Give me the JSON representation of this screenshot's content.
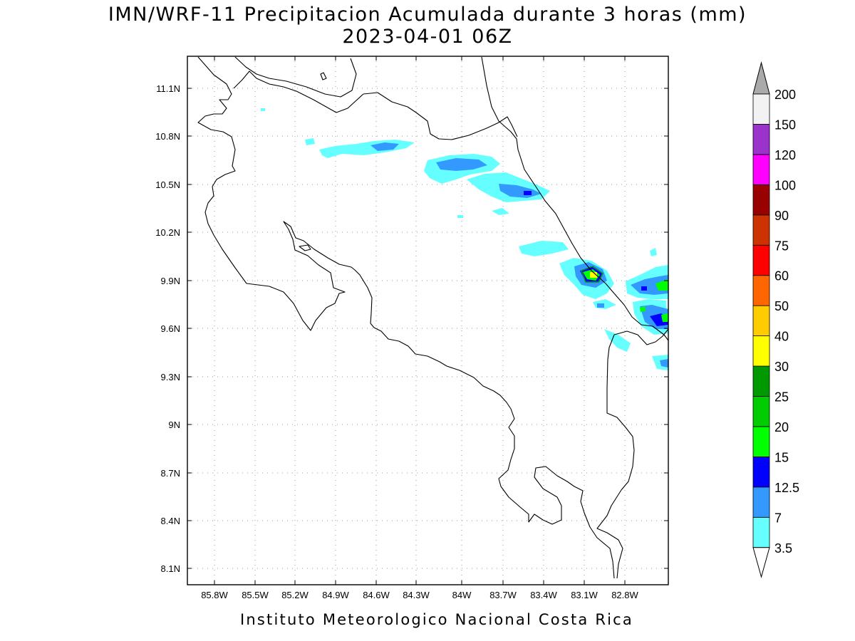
{
  "title": "IMN/WRF-11 Precipitacion Acumulada durante 3 horas (mm)",
  "subtitle": "2023-04-01 06Z",
  "footer": "Instituto Meteorologico Nacional Costa Rica",
  "map": {
    "variable": "accumulated precipitation 3h",
    "units": "mm",
    "lon_range": [
      -86.16,
      -82.53
    ],
    "lat_range": [
      8.0,
      11.28
    ],
    "lon_ticks": [
      "85.8W",
      "85.5W",
      "85.2W",
      "84.9W",
      "84.6W",
      "84.3W",
      "84W",
      "83.7W",
      "83.4W",
      "83.1W",
      "82.8W"
    ],
    "lat_ticks": [
      "11.1N",
      "10.8N",
      "10.5N",
      "10.2N",
      "9.9N",
      "9.6N",
      "9.3N",
      "9N",
      "8.7N",
      "8.4N",
      "8.1N"
    ],
    "grid": true
  },
  "colorbar": {
    "labels": [
      "3.5",
      "7",
      "12.5",
      "15",
      "20",
      "25",
      "30",
      "40",
      "50",
      "60",
      "75",
      "90",
      "100",
      "120",
      "150",
      "200"
    ],
    "colors": [
      "#66ffff",
      "#3399ff",
      "#0000ff",
      "#00ff00",
      "#00cc00",
      "#009900",
      "#ffff00",
      "#ffcc00",
      "#ff6600",
      "#ff0000",
      "#cc3300",
      "#990000",
      "#ff00ff",
      "#9933cc",
      "#f2f2f2"
    ],
    "top_arrow_color": "#aaaaaa",
    "bottom_arrow_color": "#ffffff"
  },
  "precip_colors": {
    "light": "#66ffff",
    "moderate": "#3399ff",
    "heavy": "#0000ff",
    "very_heavy": "#00ff00",
    "intense": "#009900",
    "extreme": "#ffff00"
  }
}
